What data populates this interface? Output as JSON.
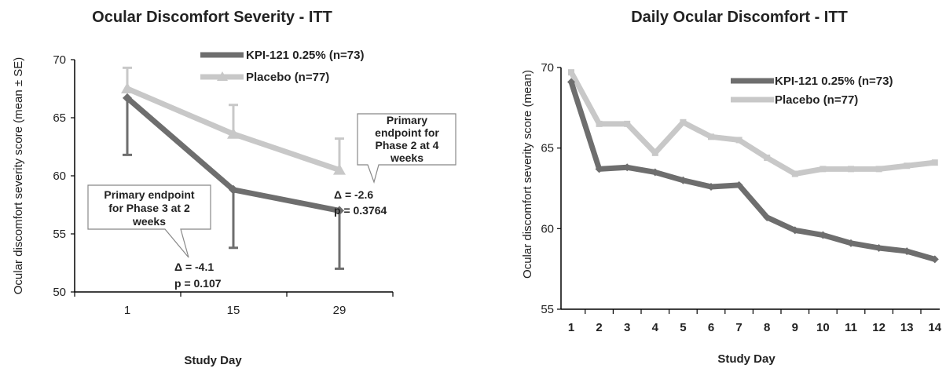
{
  "chart_data": [
    {
      "type": "line",
      "title": "Ocular Discomfort Severity - ITT",
      "xlabel": "Study Day",
      "ylabel": "Ocular discomfort severity  score (mean ± SE)",
      "categories": [
        "1",
        "15",
        "29"
      ],
      "ylim": [
        50,
        70
      ],
      "yticks": [
        "50",
        "55",
        "60",
        "65",
        "70"
      ],
      "grid": false,
      "legend_position": "top-right",
      "series": [
        {
          "name": "KPI-121 0.25% (n=73)",
          "values": [
            66.7,
            58.8,
            57.0
          ],
          "se": [
            4.9,
            5.0,
            5.0
          ],
          "color": "#6e6e6e"
        },
        {
          "name": "Placebo (n=77)",
          "values": [
            67.5,
            63.6,
            60.5
          ],
          "se": [
            1.8,
            2.5,
            2.7
          ],
          "color": "#c8c8c8"
        }
      ],
      "annotations": {
        "callout1": [
          "Primary endpoint",
          "for Phase 3 at 2",
          "weeks"
        ],
        "stat1": [
          "Δ = -4.1",
          "p = 0.107"
        ],
        "callout2": [
          "Primary",
          "endpoint for",
          "Phase 2 at 4",
          "weeks"
        ],
        "stat2": [
          "Δ = -2.6",
          "p = 0.3764"
        ]
      }
    },
    {
      "type": "line",
      "title": "Daily Ocular Discomfort - ITT",
      "xlabel": "Study Day",
      "ylabel": "Ocular discomfort severity  score (mean)",
      "categories": [
        "1",
        "2",
        "3",
        "4",
        "5",
        "6",
        "7",
        "8",
        "9",
        "10",
        "11",
        "12",
        "13",
        "14"
      ],
      "ylim": [
        55,
        70
      ],
      "yticks": [
        "55",
        "60",
        "65",
        "70"
      ],
      "grid": false,
      "legend_position": "top-right",
      "series": [
        {
          "name": "KPI-121 0.25% (n=73)",
          "values": [
            69.1,
            63.7,
            63.8,
            63.5,
            63.0,
            62.6,
            62.7,
            60.7,
            59.9,
            59.6,
            59.1,
            58.8,
            58.6,
            58.1
          ],
          "color": "#6e6e6e"
        },
        {
          "name": "Placebo (n=77)",
          "values": [
            69.7,
            66.5,
            66.5,
            64.7,
            66.6,
            65.7,
            65.5,
            64.4,
            63.4,
            63.7,
            63.7,
            63.7,
            63.9,
            64.1
          ],
          "color": "#c8c8c8"
        }
      ]
    }
  ]
}
